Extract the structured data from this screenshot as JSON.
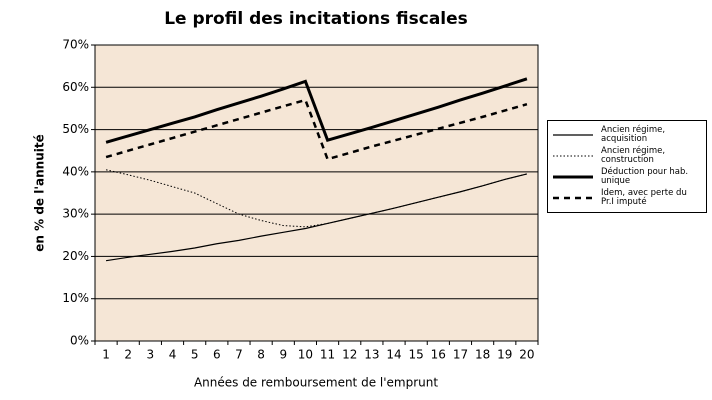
{
  "chart_data": {
    "type": "line",
    "title": "Le profil des incitations fiscales",
    "x_label": "Années de remboursement de l'emprunt",
    "y_label": "en % de l'annuité",
    "categories": [
      "1",
      "2",
      "3",
      "4",
      "5",
      "6",
      "7",
      "8",
      "9",
      "10",
      "11",
      "12",
      "13",
      "14",
      "15",
      "16",
      "17",
      "18",
      "19",
      "20"
    ],
    "ylim": [
      0,
      70
    ],
    "yticks": [
      {
        "value": 0,
        "label": "0%"
      },
      {
        "value": 10,
        "label": "10%"
      },
      {
        "value": 20,
        "label": "20%"
      },
      {
        "value": 30,
        "label": "30%"
      },
      {
        "value": 40,
        "label": "40%"
      },
      {
        "value": 50,
        "label": "50%"
      },
      {
        "value": 60,
        "label": "60%"
      },
      {
        "value": 70,
        "label": "70%"
      }
    ],
    "grid": true,
    "plot_background": "#f5e6d6",
    "legend": "right",
    "series": [
      {
        "name": "Ancien régime, acquisition",
        "color": "#000000",
        "line_style": "solid",
        "line_width": 1.2,
        "values": [
          19,
          19.8,
          20.5,
          21.2,
          22,
          23,
          23.8,
          24.8,
          25.7,
          26.6,
          27.8,
          29,
          30.2,
          31.4,
          32.7,
          34,
          35.3,
          36.7,
          38.2,
          39.5
        ]
      },
      {
        "name": "Ancien régime, construction",
        "color": "#000000",
        "line_style": "dotted",
        "line_width": 1,
        "values": [
          40.5,
          39.3,
          38,
          36.5,
          35,
          32.5,
          30,
          28.5,
          27.3,
          27,
          27.8,
          29,
          30.2,
          31.4,
          32.7,
          34,
          35.3,
          36.7,
          38.2,
          39.5
        ]
      },
      {
        "name": "Déduction pour hab. unique",
        "color": "#000000",
        "line_style": "solid",
        "line_width": 3,
        "values": [
          47,
          48.5,
          50,
          51.5,
          53,
          54.7,
          56.3,
          57.9,
          59.6,
          61.4,
          47.5,
          49,
          50.5,
          52.1,
          53.7,
          55.3,
          57,
          58.6,
          60.3,
          62
        ]
      },
      {
        "name": "Idem, avec perte du Pr.I imputé",
        "color": "#000000",
        "line_style": "dashed",
        "line_width": 2.5,
        "values": [
          43.5,
          45,
          46.5,
          48,
          49.5,
          51,
          52.5,
          54,
          55.5,
          57,
          43,
          44.5,
          46,
          47.4,
          48.8,
          50.2,
          51.6,
          53,
          54.5,
          56
        ]
      }
    ]
  }
}
